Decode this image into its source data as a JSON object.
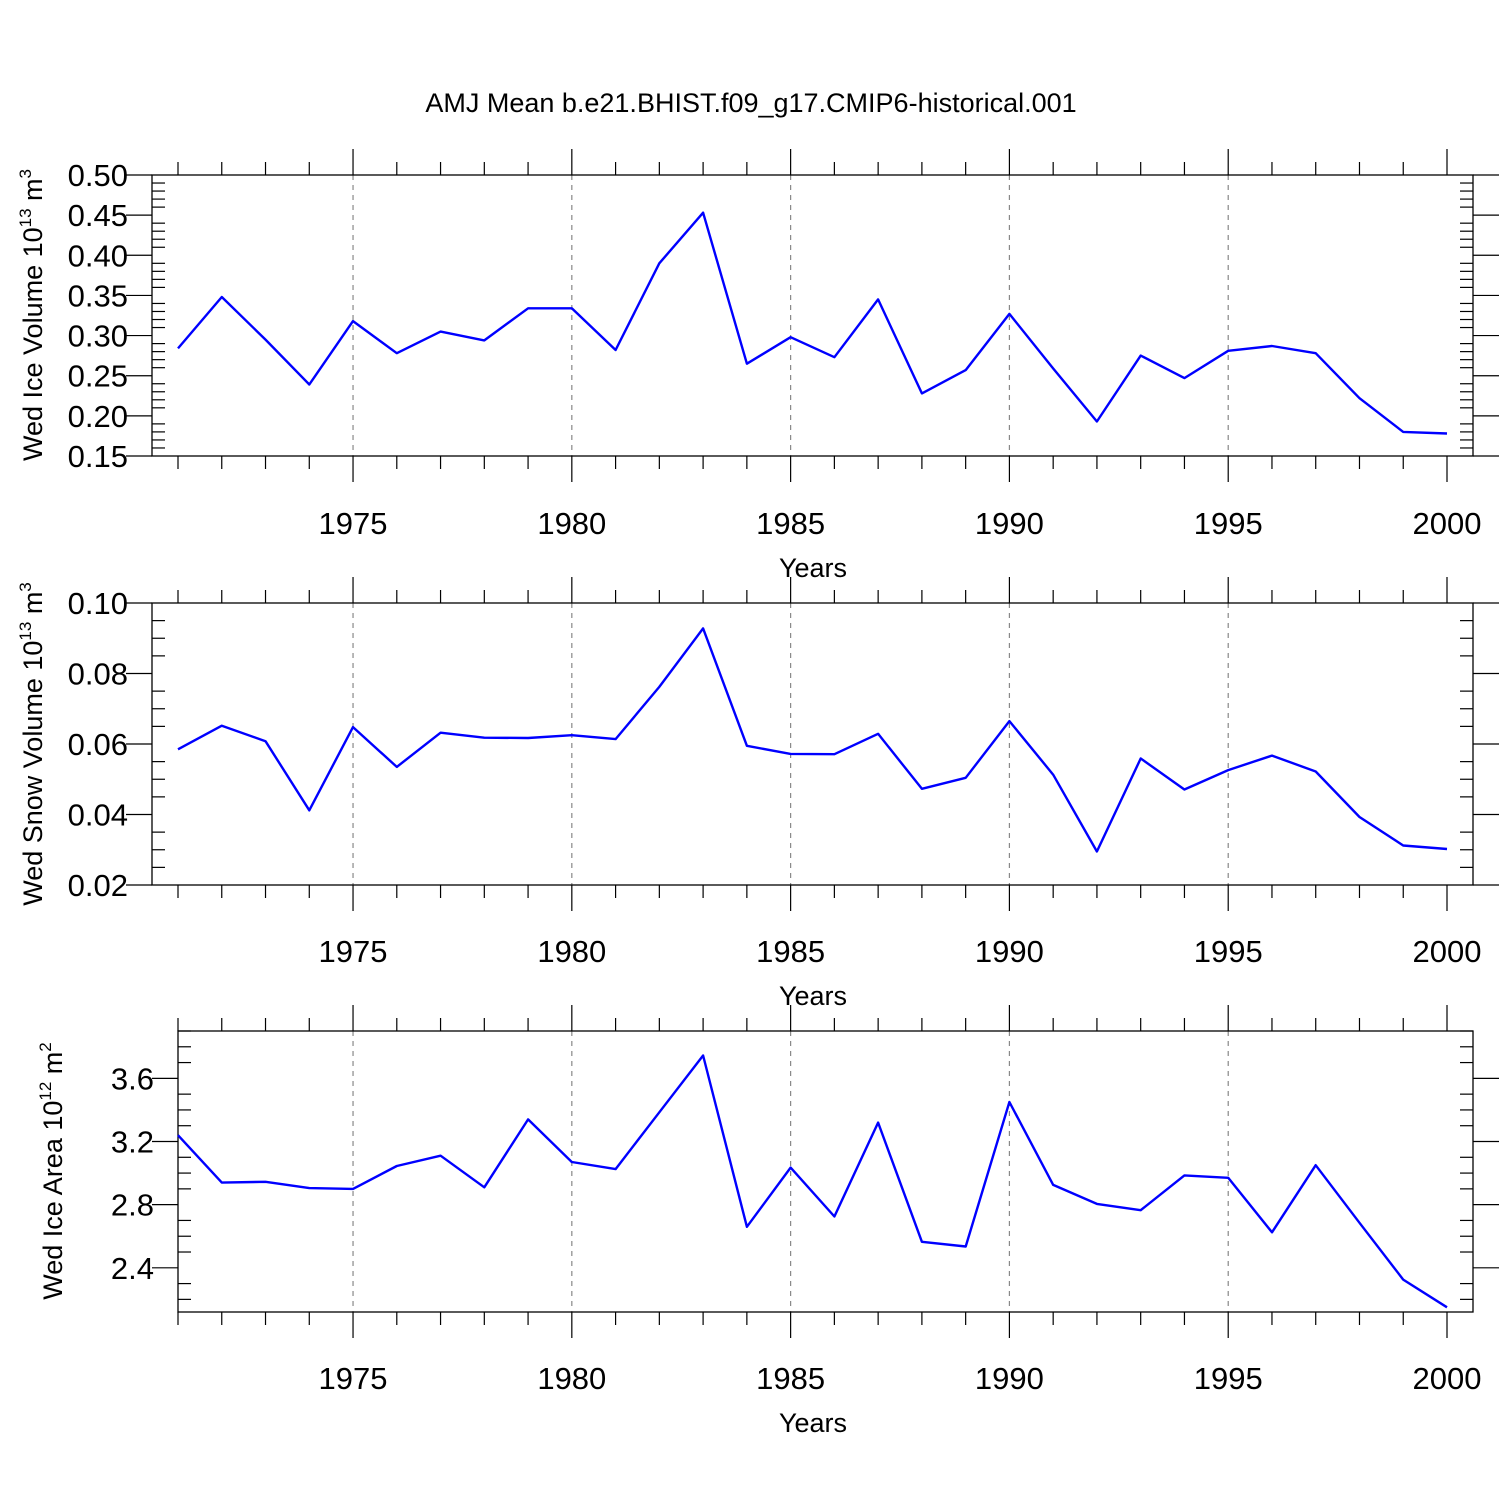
{
  "figure": {
    "title": "AMJ Mean b.e21.BHIST.f09_g17.CMIP6-historical.001"
  },
  "colors": {
    "series_line": "#0000ff",
    "grid": "#888888",
    "axis": "#000000"
  },
  "chart_data": [
    {
      "type": "line",
      "title": "",
      "xlabel": "Years",
      "ylabel": {
        "text": "Wed Ice Volume 10",
        "sup1": "13",
        "mid": " m",
        "sup2": "3"
      },
      "xlim": [
        1971,
        2000
      ],
      "ylim": [
        0.15,
        0.5
      ],
      "x_ticks": [
        1975,
        1980,
        1985,
        1990,
        1995,
        2000
      ],
      "y_ticks": [
        0.15,
        0.2,
        0.25,
        0.3,
        0.35,
        0.4,
        0.45,
        0.5
      ],
      "y_tick_labels": [
        "0.15",
        "0.20",
        "0.25",
        "0.30",
        "0.35",
        "0.40",
        "0.45",
        "0.50"
      ],
      "y_minor_step": 0.01,
      "grid": "vertical dashed at major x ticks",
      "x": [
        1971,
        1972,
        1973,
        1974,
        1975,
        1976,
        1977,
        1978,
        1979,
        1980,
        1981,
        1982,
        1983,
        1984,
        1985,
        1986,
        1987,
        1988,
        1989,
        1990,
        1991,
        1992,
        1993,
        1994,
        1995,
        1996,
        1997,
        1998,
        1999,
        2000
      ],
      "series": [
        {
          "values": [
            0.284,
            0.348,
            0.295,
            0.239,
            0.318,
            0.278,
            0.305,
            0.294,
            0.334,
            0.334,
            0.282,
            0.39,
            0.453,
            0.265,
            0.298,
            0.273,
            0.345,
            0.228,
            0.257,
            0.327,
            0.259,
            0.193,
            0.275,
            0.247,
            0.281,
            0.287,
            0.278,
            0.222,
            0.18,
            0.178
          ]
        }
      ]
    },
    {
      "type": "line",
      "title": "",
      "xlabel": "Years",
      "ylabel": {
        "text": "Wed Snow Volume 10",
        "sup1": "13",
        "mid": " m",
        "sup2": "3"
      },
      "xlim": [
        1971,
        2000
      ],
      "ylim": [
        0.02,
        0.1
      ],
      "x_ticks": [
        1975,
        1980,
        1985,
        1990,
        1995,
        2000
      ],
      "y_ticks": [
        0.02,
        0.04,
        0.06,
        0.08,
        0.1
      ],
      "y_tick_labels": [
        "0.02",
        "0.04",
        "0.06",
        "0.08",
        "0.10"
      ],
      "y_minor_step": 0.005,
      "grid": "vertical dashed at major x ticks",
      "x": [
        1971,
        1972,
        1973,
        1974,
        1975,
        1976,
        1977,
        1978,
        1979,
        1980,
        1981,
        1982,
        1983,
        1984,
        1985,
        1986,
        1987,
        1988,
        1989,
        1990,
        1991,
        1992,
        1993,
        1994,
        1995,
        1996,
        1997,
        1998,
        1999,
        2000
      ],
      "series": [
        {
          "values": [
            0.0585,
            0.0652,
            0.0608,
            0.0412,
            0.0648,
            0.0535,
            0.0632,
            0.0618,
            0.0617,
            0.0625,
            0.0614,
            0.0762,
            0.0928,
            0.0595,
            0.0572,
            0.0571,
            0.0629,
            0.0473,
            0.0504,
            0.0665,
            0.0513,
            0.0295,
            0.0559,
            0.0471,
            0.0526,
            0.0567,
            0.0522,
            0.0393,
            0.0312,
            0.0302
          ]
        }
      ]
    },
    {
      "type": "line",
      "title": "",
      "xlabel": "Years",
      "ylabel": {
        "text": "Wed Ice Area 10",
        "sup1": "12",
        "mid": " m",
        "sup2": "2"
      },
      "xlim": [
        1971,
        2000
      ],
      "ylim": [
        2.12,
        3.9
      ],
      "x_ticks": [
        1975,
        1980,
        1985,
        1990,
        1995,
        2000
      ],
      "y_ticks": [
        2.4,
        2.8,
        3.2,
        3.6
      ],
      "y_tick_labels": [
        "2.4",
        "2.8",
        "3.2",
        "3.6"
      ],
      "y_minor_step": 0.1,
      "grid": "vertical dashed at major x ticks",
      "x": [
        1971,
        1972,
        1973,
        1974,
        1975,
        1976,
        1977,
        1978,
        1979,
        1980,
        1981,
        1982,
        1983,
        1984,
        1985,
        1986,
        1987,
        1988,
        1989,
        1990,
        1991,
        1992,
        1993,
        1994,
        1995,
        1996,
        1997,
        1998,
        1999,
        2000
      ],
      "series": [
        {
          "values": [
            3.24,
            2.94,
            2.945,
            2.905,
            2.9,
            3.045,
            3.11,
            2.91,
            3.34,
            3.07,
            3.025,
            3.385,
            3.745,
            2.66,
            3.035,
            2.725,
            3.32,
            2.565,
            2.535,
            3.45,
            2.925,
            2.805,
            2.765,
            2.985,
            2.97,
            2.625,
            3.05,
            2.685,
            2.325,
            2.15
          ]
        }
      ]
    }
  ]
}
